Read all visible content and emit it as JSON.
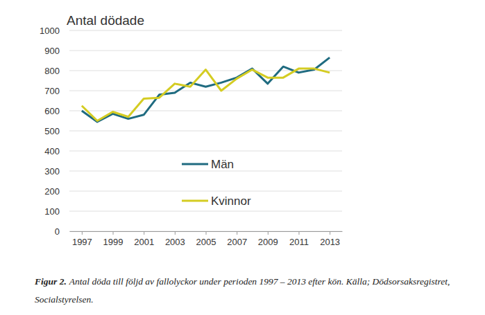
{
  "chart_data": {
    "type": "line",
    "title": "Antal dödade",
    "caption_label": "Figur 2.",
    "caption": "Antal döda till följd av fallolyckor under perioden 1997 – 2013 efter kön. Källa; Dödsorsaksregistret, Socialstyrelsen.",
    "x": [
      1997,
      1998,
      1999,
      2000,
      2001,
      2002,
      2003,
      2004,
      2005,
      2006,
      2007,
      2008,
      2009,
      2010,
      2011,
      2012,
      2013
    ],
    "series": [
      {
        "name": "Män",
        "color": "#1f6b80",
        "values": [
          600,
          545,
          585,
          560,
          580,
          680,
          690,
          740,
          720,
          740,
          765,
          810,
          735,
          820,
          790,
          805,
          865
        ]
      },
      {
        "name": "Kvinnor",
        "color": "#d4cc22",
        "values": [
          625,
          550,
          595,
          570,
          660,
          665,
          735,
          720,
          805,
          700,
          760,
          805,
          765,
          765,
          810,
          810,
          790
        ]
      }
    ],
    "xlim": [
      1996.2,
      2013.8
    ],
    "xticks": [
      1997,
      1999,
      2001,
      2003,
      2005,
      2007,
      2009,
      2011,
      2013
    ],
    "ylim": [
      0,
      1000
    ],
    "yticks": [
      0,
      100,
      200,
      300,
      400,
      500,
      600,
      700,
      800,
      900,
      1000
    ],
    "grid": true,
    "legend": "left"
  }
}
